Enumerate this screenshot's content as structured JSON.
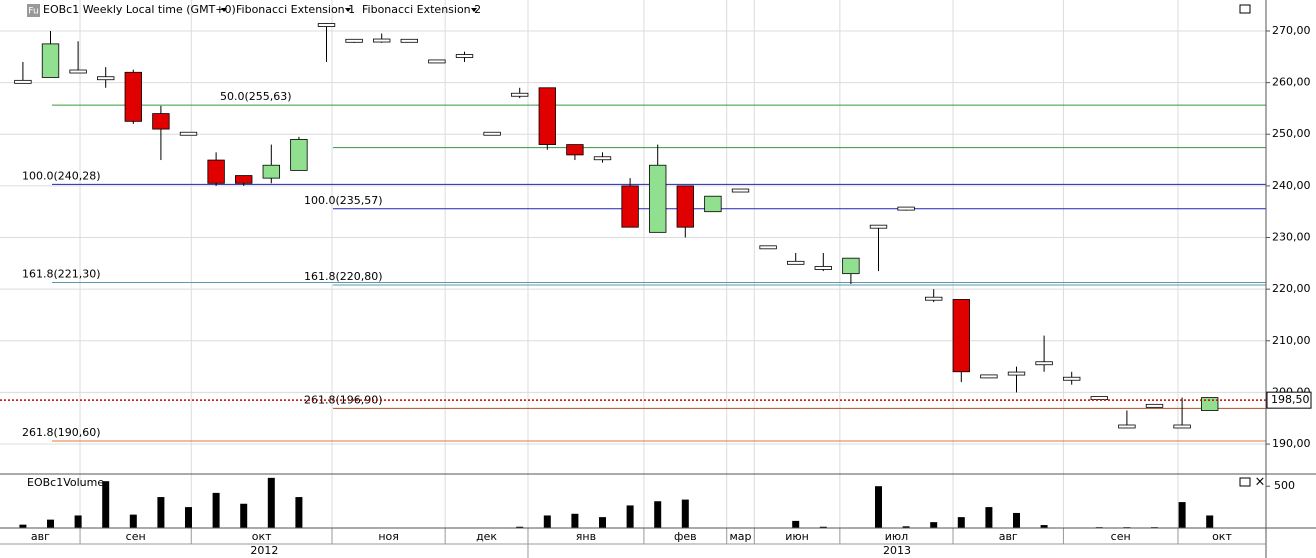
{
  "header": {
    "icon": "Fu",
    "instrument": "EOBc1 Weekly Local time (GMT+0)"
  },
  "chart_data": [
    {
      "type": "candlestick",
      "up_color": "#90e090",
      "down_color": "#e00000",
      "xlim": [
        -0.83,
        45.04
      ],
      "ylim": [
        184.2,
        276.0
      ],
      "yticks": [
        {
          "value": 190,
          "label": "190,00"
        },
        {
          "value": 200,
          "label": "200,00"
        },
        {
          "value": 210,
          "label": "210,00"
        },
        {
          "value": 220,
          "label": "220,00"
        },
        {
          "value": 230,
          "label": "230,00"
        },
        {
          "value": 240,
          "label": "240,00"
        },
        {
          "value": 250,
          "label": "250,00"
        },
        {
          "value": 260,
          "label": "260,00"
        },
        {
          "value": 270,
          "label": "270,00"
        }
      ],
      "grid": true,
      "xticks": [
        {
          "value": -0.8,
          "label": "авг"
        },
        {
          "value": 2.07,
          "label": "сен"
        },
        {
          "value": 6.1,
          "label": "окт"
        },
        {
          "value": 11.2,
          "label": "ноя"
        },
        {
          "value": 15.3,
          "label": "дек"
        },
        {
          "value": 18.3,
          "label": "янв"
        },
        {
          "value": 22.5,
          "label": "фев"
        },
        {
          "value": 25.5,
          "label": "мар"
        },
        {
          "value": 26.5,
          "label": "июн"
        },
        {
          "value": 29.6,
          "label": "июл"
        },
        {
          "value": 33.7,
          "label": "авг"
        },
        {
          "value": 37.7,
          "label": "сен"
        },
        {
          "value": 41.85,
          "label": "окт"
        }
      ],
      "years": [
        {
          "value": -0.8,
          "label": "2012"
        },
        {
          "value": 18.3,
          "label": "2013"
        }
      ],
      "open": [
        260,
        261,
        262.3,
        261,
        262,
        254,
        250.2,
        245,
        242,
        241.5,
        243,
        271,
        268,
        268,
        268.2,
        264,
        265,
        250,
        257.5,
        259,
        248,
        245.5,
        240,
        231,
        240,
        235,
        239,
        228,
        225,
        224,
        223,
        232,
        235.5,
        218,
        218,
        203,
        203.5,
        205.5,
        202.5,
        199,
        193.5,
        197.5,
        193.5,
        196.5
      ],
      "high": [
        264,
        270,
        268,
        263,
        262.5,
        255.5,
        250.2,
        246.5,
        242,
        248,
        249.5,
        271.5,
        268.3,
        269.5,
        268.4,
        264.2,
        266,
        250.2,
        259,
        259,
        248,
        246.5,
        241.5,
        248,
        240,
        238,
        239.2,
        228.2,
        227,
        227,
        226,
        232.2,
        235.8,
        220,
        218,
        203.2,
        205,
        211,
        204,
        199.2,
        196.5,
        197.7,
        199,
        199
      ],
      "low": [
        260,
        261,
        262,
        259,
        252,
        245,
        249.8,
        240,
        240,
        240.5,
        243,
        264,
        267.7,
        267.7,
        267.8,
        263.8,
        264,
        249.8,
        257,
        247,
        245,
        244.5,
        232,
        231,
        230,
        235,
        238.8,
        227.8,
        224.8,
        223.5,
        221,
        223.5,
        235.2,
        217.5,
        202,
        202.8,
        200,
        204,
        201.5,
        198.8,
        193.3,
        197.3,
        193.3,
        196.5
      ],
      "close": [
        260.3,
        267.5,
        262,
        260.7,
        252.5,
        251,
        250,
        240.5,
        240.5,
        244,
        249,
        271.3,
        268.2,
        268.3,
        268,
        264.2,
        265.3,
        250.2,
        257.8,
        248,
        246,
        245.2,
        232,
        244,
        232,
        238,
        239.2,
        228.2,
        225.2,
        224.2,
        226,
        232.2,
        235.7,
        218.3,
        204,
        203.2,
        203.8,
        205.8,
        202.8,
        198.8,
        193.3,
        197.3,
        193.3,
        199
      ],
      "current_price": {
        "value": 198.5,
        "label": "198,50"
      },
      "fibonacci_extensions": [
        {
          "name": "Fibonacci Extension 1",
          "levels": [
            {
              "label": "50.0(255,63)",
              "value": 255.63,
              "color": "#3a963a"
            },
            {
              "label": "100.0(240,28)",
              "value": 240.28,
              "color": "#2323b4"
            },
            {
              "label": "161.8(221,30)",
              "value": 221.3,
              "color": "#5b9aab"
            },
            {
              "label": "261.8(190,60)",
              "value": 190.6,
              "color": "#e07b3c"
            }
          ]
        },
        {
          "name": "Fibonacci Extension 2",
          "levels": [
            {
              "value": 247.4,
              "color": "#3a963a"
            },
            {
              "label": "100.0(235,57)",
              "value": 235.57,
              "color": "#2323b4"
            },
            {
              "label": "161.8(220,80)",
              "value": 220.8,
              "color": "#5b9aab"
            },
            {
              "label": "261.8(196,90)",
              "value": 196.9,
              "color": "#b0502a"
            }
          ]
        }
      ]
    },
    {
      "type": "bar",
      "title": "EOBc1Volume",
      "color": "#000000",
      "ylim": [
        0,
        646
      ],
      "yticks": [
        500
      ],
      "values": [
        40,
        100,
        150,
        560,
        160,
        370,
        250,
        420,
        290,
        600,
        370,
        0,
        0,
        0,
        0,
        0,
        0,
        0,
        15,
        150,
        170,
        130,
        270,
        320,
        340,
        0,
        0,
        0,
        85,
        15,
        0,
        500,
        20,
        70,
        130,
        250,
        180,
        35,
        0,
        10,
        10,
        10,
        310,
        150
      ]
    }
  ]
}
